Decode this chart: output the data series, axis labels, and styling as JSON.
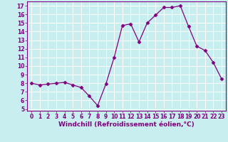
{
  "x": [
    0,
    1,
    2,
    3,
    4,
    5,
    6,
    7,
    8,
    9,
    10,
    11,
    12,
    13,
    14,
    15,
    16,
    17,
    18,
    19,
    20,
    21,
    22,
    23
  ],
  "y": [
    8.0,
    7.8,
    7.9,
    8.0,
    8.1,
    7.8,
    7.5,
    6.5,
    5.4,
    7.9,
    11.0,
    14.7,
    14.9,
    12.8,
    15.0,
    15.9,
    16.8,
    16.8,
    17.0,
    14.6,
    12.3,
    11.8,
    10.4,
    8.5
  ],
  "line_color": "#800080",
  "marker": "D",
  "markersize": 2.5,
  "linewidth": 0.9,
  "bg_color": "#c8eef0",
  "grid_color": "#ffffff",
  "xlabel": "Windchill (Refroidissement éolien,°C)",
  "xlim": [
    -0.5,
    23.5
  ],
  "ylim": [
    4.8,
    17.5
  ],
  "yticks": [
    5,
    6,
    7,
    8,
    9,
    10,
    11,
    12,
    13,
    14,
    15,
    16,
    17
  ],
  "xticks": [
    0,
    1,
    2,
    3,
    4,
    5,
    6,
    7,
    8,
    9,
    10,
    11,
    12,
    13,
    14,
    15,
    16,
    17,
    18,
    19,
    20,
    21,
    22,
    23
  ],
  "tick_fontsize": 5.5,
  "xlabel_fontsize": 6.5
}
